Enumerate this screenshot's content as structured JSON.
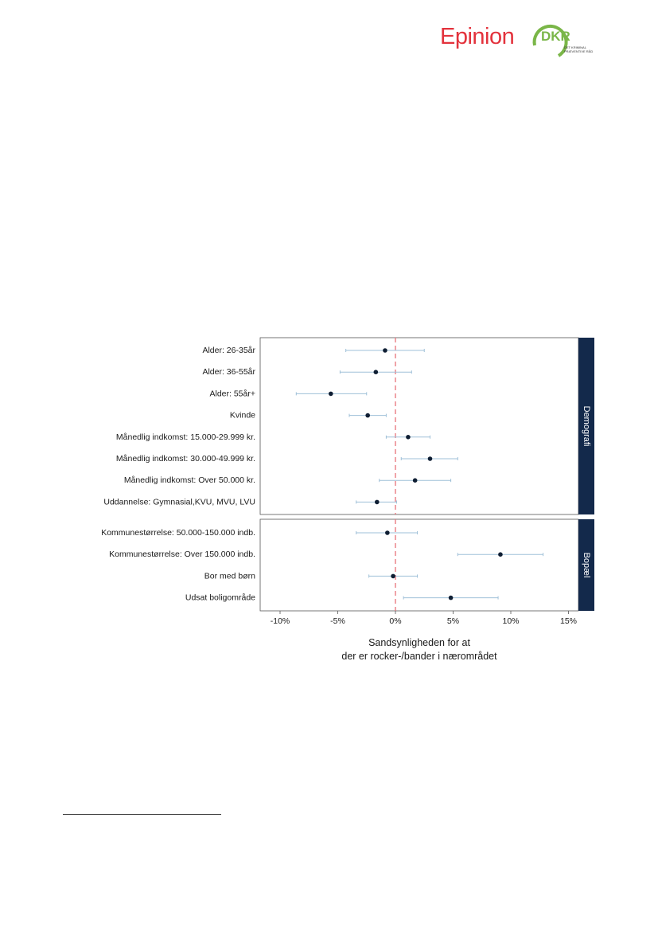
{
  "header": {
    "epinion_logo": "Epinion",
    "dkr_logo": "DKR",
    "dkr_subtitle_line1": "DET KRIMINAL",
    "dkr_subtitle_line2": "PRÆVENTIVE RÅD"
  },
  "colors": {
    "point": "#0f1e33",
    "ci": "#9fc0d8",
    "zero_line": "#e8727a",
    "facet_strip": "#13294b",
    "dkr_green": "#7ab648",
    "epinion_red": "#e3323c"
  },
  "chart_data": {
    "type": "scatter",
    "subtype": "coefficient-plot-with-confidence-intervals",
    "xlabel_line1": "Sandsynligheden for at",
    "xlabel_line2": "der er rocker-/bander i nærområdet",
    "xlim": [
      -12,
      16
    ],
    "xticks": [
      -10,
      -5,
      0,
      5,
      10,
      15
    ],
    "xtick_labels": [
      "-10%",
      "-5%",
      "0%",
      "5%",
      "10%",
      "15%"
    ],
    "reference_line": 0,
    "panels": [
      {
        "facet": "Demografi",
        "rows": [
          {
            "label": "Alder: 26-35år",
            "estimate": -0.9,
            "lo": -4.3,
            "hi": 2.5
          },
          {
            "label": "Alder: 36-55år",
            "estimate": -1.7,
            "lo": -4.8,
            "hi": 1.4
          },
          {
            "label": "Alder: 55år+",
            "estimate": -5.6,
            "lo": -8.6,
            "hi": -2.5
          },
          {
            "label": "Kvinde",
            "estimate": -2.4,
            "lo": -4.0,
            "hi": -0.8
          },
          {
            "label": "Månedlig indkomst: 15.000-29.999 kr.",
            "estimate": 1.1,
            "lo": -0.8,
            "hi": 3.0
          },
          {
            "label": "Månedlig indkomst: 30.000-49.999 kr.",
            "estimate": 3.0,
            "lo": 0.5,
            "hi": 5.4
          },
          {
            "label": "Månedlig indkomst: Over 50.000 kr.",
            "estimate": 1.7,
            "lo": -1.4,
            "hi": 4.8
          },
          {
            "label": "Uddannelse: Gymnasial,KVU, MVU, LVU",
            "estimate": -1.6,
            "lo": -3.4,
            "hi": 0.1
          }
        ]
      },
      {
        "facet": "Bopæl",
        "rows": [
          {
            "label": "Kommunestørrelse: 50.000-150.000 indb.",
            "estimate": -0.7,
            "lo": -3.4,
            "hi": 1.9
          },
          {
            "label": "Kommunestørrelse: Over 150.000 indb.",
            "estimate": 9.1,
            "lo": 5.4,
            "hi": 12.8
          },
          {
            "label": "Bor med børn",
            "estimate": -0.2,
            "lo": -2.3,
            "hi": 1.9
          },
          {
            "label": "Udsat boligområde",
            "estimate": 4.8,
            "lo": 0.7,
            "hi": 8.9
          }
        ]
      }
    ]
  }
}
